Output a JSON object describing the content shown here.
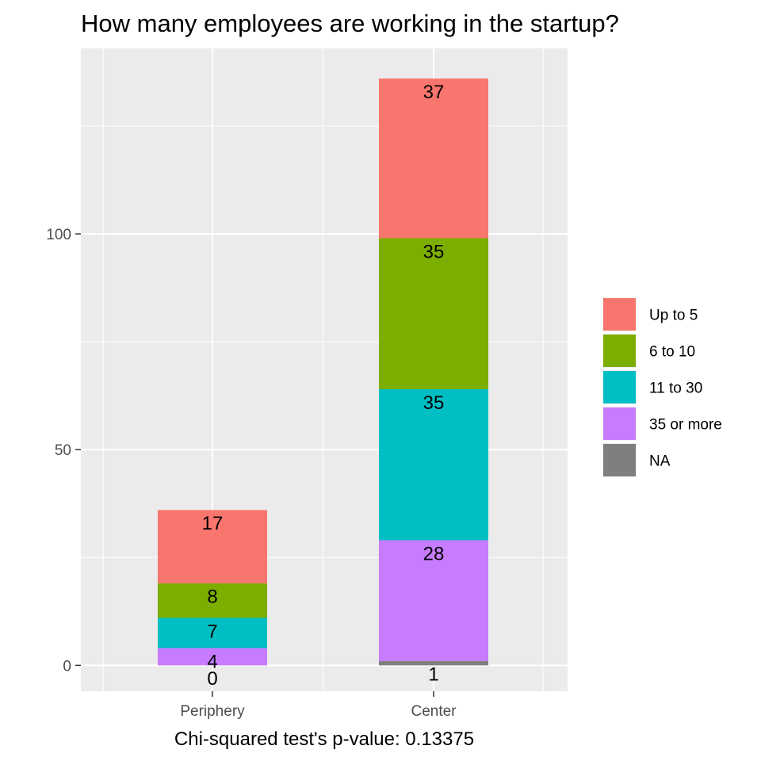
{
  "chart_data": {
    "type": "bar",
    "stacked": true,
    "title": "How many employees are working in the startup?",
    "xlabel": "Chi-squared test's p-value: 0.13375",
    "ylabel": "",
    "categories": [
      "Periphery",
      "Center"
    ],
    "ylim": [
      -6,
      143
    ],
    "yticks": [
      0,
      50,
      100
    ],
    "grid": true,
    "legend_position": "right",
    "series": [
      {
        "name": "Up to 5",
        "color": "#F8766D",
        "values": [
          17,
          37
        ]
      },
      {
        "name": "6 to 10",
        "color": "#7CAE00",
        "values": [
          8,
          35
        ]
      },
      {
        "name": "11 to 30",
        "color": "#00BFC4",
        "values": [
          7,
          35
        ]
      },
      {
        "name": "35 or more",
        "color": "#C77CFF",
        "values": [
          4,
          28
        ]
      },
      {
        "name": "NA",
        "color": "#7F7F7F",
        "values": [
          0,
          1
        ]
      }
    ]
  }
}
